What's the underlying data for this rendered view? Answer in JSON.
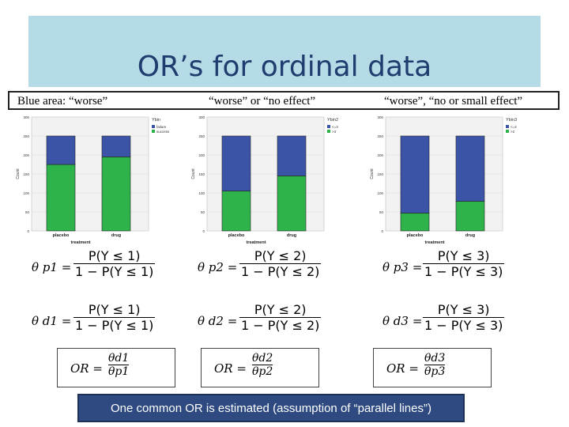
{
  "slide": {
    "title": "OR’s for ordinal data",
    "labels": [
      "Blue area:   “worse”",
      "“worse” or “no effect”",
      "“worse”, “no or small effect”"
    ],
    "footer": "One common OR is estimated (assumption of “parallel lines”)"
  },
  "charts": [
    {
      "ylabel": "Count",
      "xlabel": "treatment",
      "legend_title": "Ybin",
      "legend": [
        "failure",
        "success"
      ],
      "yticks": [
        "300",
        "250",
        "200",
        "150",
        "100",
        "50",
        "0"
      ]
    },
    {
      "ylabel": "Count",
      "xlabel": "treatment",
      "legend_title": "Ybin2",
      "legend": [
        "<=3",
        ">3"
      ],
      "yticks": [
        "300",
        "250",
        "200",
        "150",
        "100",
        "50",
        "0"
      ]
    },
    {
      "ylabel": "Count",
      "xlabel": "treatment",
      "legend_title": "Ybin3",
      "legend": [
        "<=2",
        ">2"
      ],
      "yticks": [
        "300",
        "250",
        "200",
        "150",
        "100",
        "50",
        "0"
      ]
    }
  ],
  "chart_data": [
    {
      "type": "bar",
      "categories": [
        "placebo",
        "drug"
      ],
      "series": [
        {
          "name": "failure",
          "values": [
            75,
            55
          ]
        },
        {
          "name": "success",
          "values": [
            175,
            195
          ]
        }
      ],
      "ylim": [
        0,
        300
      ],
      "colors": [
        "#3b54a8",
        "#2eb34a"
      ]
    },
    {
      "type": "bar",
      "categories": [
        "placebo",
        "drug"
      ],
      "series": [
        {
          "name": "<=3",
          "values": [
            145,
            105
          ]
        },
        {
          "name": ">3",
          "values": [
            105,
            145
          ]
        }
      ],
      "ylim": [
        0,
        300
      ],
      "colors": [
        "#3b54a8",
        "#2eb34a"
      ]
    },
    {
      "type": "bar",
      "categories": [
        "placebo",
        "drug"
      ],
      "series": [
        {
          "name": "<=2",
          "values": [
            203,
            172
          ]
        },
        {
          "name": ">2",
          "values": [
            47,
            78
          ]
        }
      ],
      "ylim": [
        0,
        300
      ],
      "colors": [
        "#3b54a8",
        "#2eb34a"
      ]
    }
  ],
  "formulas": {
    "theta_p": [
      "θ p1 =",
      "θ p2 =",
      "θ p3 ="
    ],
    "theta_d": [
      "θ d1 =",
      "θ d2 =",
      "θ d3 ="
    ],
    "num": [
      "P(Y ≤ 1)",
      "P(Y ≤ 2)",
      "P(Y ≤ 3)"
    ],
    "den": [
      "1 − P(Y ≤ 1)",
      "1 − P(Y ≤ 2)",
      "1 − P(Y ≤ 3)"
    ],
    "or_label": "OR =",
    "or_num": [
      "θd1",
      "θd2",
      "θd3"
    ],
    "or_den": [
      "θp1",
      "θp2",
      "θp3"
    ]
  }
}
